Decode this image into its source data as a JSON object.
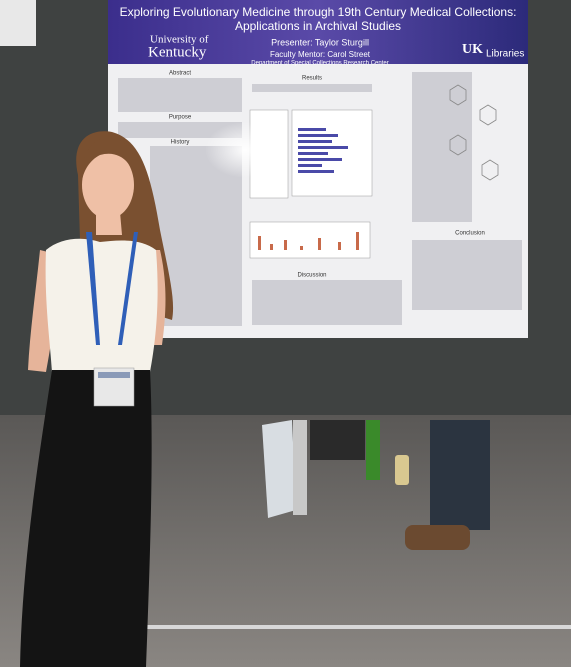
{
  "poster": {
    "title_line1": "Exploring Evolutionary Medicine through 19th Century Medical Collections:",
    "title_line2": "Applications in Archival Studies",
    "university_line1": "University of",
    "university_line2": "Kentucky",
    "presenter": "Presenter: Taylor Sturgill",
    "mentor": "Faculty Mentor: Carol Street",
    "department": "Department of Special Collections Research Center",
    "libraries": "Libraries",
    "sections": {
      "abstract": "Abstract",
      "purpose": "Purpose",
      "history": "History",
      "results": "Results",
      "discussion": "Discussion",
      "conclusion": "Conclusion"
    }
  }
}
